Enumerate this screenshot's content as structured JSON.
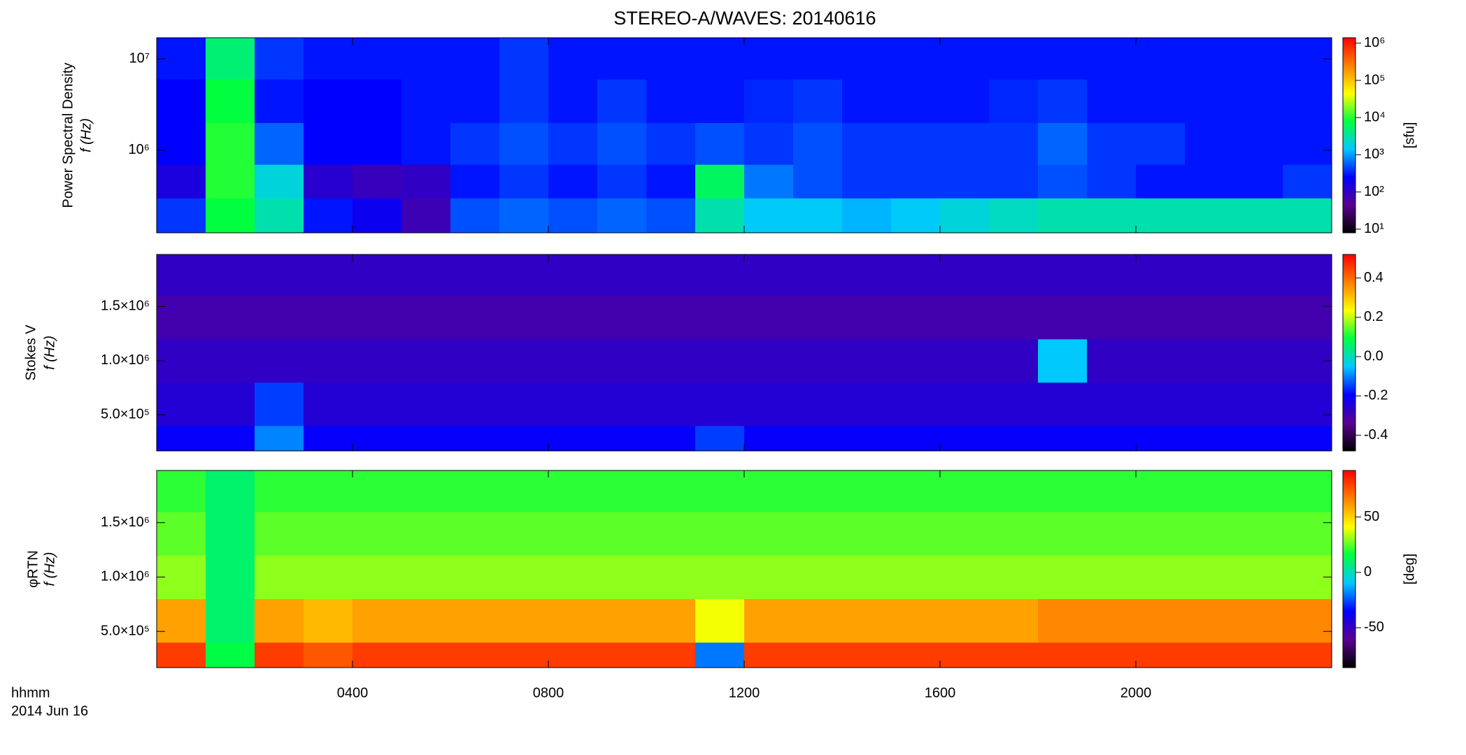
{
  "chart_data": [
    {
      "type": "heatmap",
      "title": "STEREO-A/WAVES: 20140616",
      "ylabels": [
        "Power Spectral Density",
        "f (Hz)"
      ],
      "zlabel": "[sfu]",
      "log_y": true,
      "log_z": true,
      "xlim": [
        0,
        24
      ],
      "xticks": [
        {
          "value": 4,
          "label": "0400"
        },
        {
          "value": 8,
          "label": "0800"
        },
        {
          "value": 12,
          "label": "1200"
        },
        {
          "value": 16,
          "label": "1600"
        },
        {
          "value": 20,
          "label": "2000"
        }
      ],
      "ylim": [
        125000,
        17000000
      ],
      "yticks": [
        {
          "value": 1000000,
          "label": "10⁶"
        },
        {
          "value": 10000000,
          "label": "10⁷"
        }
      ],
      "zlim": [
        8,
        1400000
      ],
      "zticks": [
        {
          "value": 10,
          "label": "10¹"
        },
        {
          "value": 100,
          "label": "10²"
        },
        {
          "value": 1000,
          "label": "10³"
        },
        {
          "value": 10000,
          "label": "10⁴"
        },
        {
          "value": 100000,
          "label": "10⁵"
        },
        {
          "value": 1000000,
          "label": "10⁶"
        }
      ],
      "colormap": [
        "#000000",
        "#5a0090",
        "#0000ff",
        "#00c8ff",
        "#00ff40",
        "#ffff00",
        "#ff8000",
        "#ff0000"
      ],
      "time_bins": [
        0,
        1,
        2,
        3,
        4,
        5,
        6,
        7,
        8,
        9,
        10,
        11,
        12,
        13,
        14,
        15,
        16,
        17,
        18,
        19,
        20,
        21,
        22,
        23,
        24
      ],
      "freq_bins": [
        125000,
        300000,
        700000,
        2000000,
        6000000,
        17000000
      ],
      "z": [
        [
          400,
          8000,
          3000,
          300,
          200,
          80,
          500,
          600,
          500,
          600,
          500,
          3000,
          1500,
          1500,
          1200,
          1500,
          2000,
          2500,
          3000,
          3000,
          3000,
          3000,
          3000,
          3000
        ],
        [
          150,
          10000,
          2000,
          120,
          90,
          100,
          300,
          400,
          300,
          400,
          300,
          6000,
          700,
          500,
          400,
          400,
          400,
          400,
          500,
          400,
          300,
          300,
          300,
          400
        ],
        [
          250,
          10000,
          600,
          250,
          250,
          300,
          400,
          500,
          400,
          500,
          400,
          500,
          400,
          500,
          400,
          400,
          400,
          400,
          600,
          400,
          400,
          300,
          300,
          300
        ],
        [
          250,
          8000,
          300,
          250,
          250,
          300,
          300,
          400,
          300,
          400,
          300,
          300,
          350,
          400,
          300,
          300,
          300,
          350,
          400,
          300,
          300,
          300,
          300,
          300
        ],
        [
          300,
          5000,
          400,
          300,
          300,
          300,
          300,
          400,
          300,
          300,
          300,
          300,
          300,
          300,
          300,
          300,
          300,
          300,
          300,
          300,
          300,
          300,
          300,
          300
        ]
      ]
    },
    {
      "type": "heatmap",
      "ylabels": [
        "Stokes V",
        "f (Hz)"
      ],
      "log_y": false,
      "log_z": false,
      "xlim": [
        0,
        24
      ],
      "xticks": [
        {
          "value": 4,
          "label": "0400"
        },
        {
          "value": 8,
          "label": "0800"
        },
        {
          "value": 12,
          "label": "1200"
        },
        {
          "value": 16,
          "label": "1600"
        },
        {
          "value": 20,
          "label": "2000"
        }
      ],
      "ylim": [
        167000,
        1980000
      ],
      "yticks": [
        {
          "value": 500000,
          "label": "5.0×10⁵"
        },
        {
          "value": 1000000,
          "label": "1.0×10⁶"
        },
        {
          "value": 1500000,
          "label": "1.5×10⁶"
        }
      ],
      "zlim": [
        -0.48,
        0.52
      ],
      "zticks": [
        -0.4,
        -0.2,
        {
          "value": 0,
          "label": "0.0"
        },
        0.2,
        0.4
      ],
      "colormap": [
        "#000000",
        "#5a0090",
        "#0000ff",
        "#00c8ff",
        "#00ff40",
        "#ffff00",
        "#ff8000",
        "#ff0000"
      ],
      "time_bins": [
        0,
        1,
        2,
        3,
        4,
        5,
        6,
        7,
        8,
        9,
        10,
        11,
        12,
        13,
        14,
        15,
        16,
        17,
        18,
        19,
        20,
        21,
        22,
        23,
        24
      ],
      "freq_bins": [
        167000,
        400000,
        800000,
        1200000,
        1600000,
        1980000
      ],
      "z": [
        [
          -0.2,
          -0.2,
          -0.1,
          -0.2,
          -0.2,
          -0.2,
          -0.2,
          -0.2,
          -0.2,
          -0.2,
          -0.2,
          -0.15,
          -0.2,
          -0.2,
          -0.2,
          -0.2,
          -0.2,
          -0.2,
          -0.2,
          -0.2,
          -0.2,
          -0.2,
          -0.2,
          -0.2
        ],
        [
          -0.25,
          -0.25,
          -0.15,
          -0.25,
          -0.25,
          -0.25,
          -0.25,
          -0.25,
          -0.25,
          -0.25,
          -0.25,
          -0.25,
          -0.25,
          -0.25,
          -0.25,
          -0.25,
          -0.25,
          -0.25,
          -0.25,
          -0.25,
          -0.25,
          -0.25,
          -0.25,
          -0.25
        ],
        [
          -0.27,
          -0.27,
          -0.27,
          -0.27,
          -0.27,
          -0.27,
          -0.27,
          -0.27,
          -0.27,
          -0.27,
          -0.27,
          -0.27,
          -0.27,
          -0.27,
          -0.27,
          -0.27,
          -0.27,
          -0.27,
          -0.05,
          -0.27,
          -0.27,
          -0.27,
          -0.27,
          -0.27
        ],
        [
          -0.3,
          -0.3,
          -0.3,
          -0.3,
          -0.3,
          -0.3,
          -0.3,
          -0.3,
          -0.3,
          -0.3,
          -0.3,
          -0.3,
          -0.3,
          -0.3,
          -0.3,
          -0.3,
          -0.3,
          -0.3,
          -0.3,
          -0.3,
          -0.3,
          -0.3,
          -0.3,
          -0.3
        ],
        [
          -0.27,
          -0.27,
          -0.27,
          -0.27,
          -0.27,
          -0.27,
          -0.27,
          -0.27,
          -0.27,
          -0.27,
          -0.27,
          -0.27,
          -0.27,
          -0.27,
          -0.27,
          -0.27,
          -0.27,
          -0.27,
          -0.27,
          -0.27,
          -0.27,
          -0.27,
          -0.27,
          -0.27
        ]
      ]
    },
    {
      "type": "heatmap",
      "ylabels": [
        "φRTN",
        "f (Hz)"
      ],
      "zlabel": "[deg]",
      "xlabel_lines": [
        "hhmm",
        "2014 Jun 16"
      ],
      "log_y": false,
      "log_z": false,
      "xlim": [
        0,
        24
      ],
      "xticks": [
        {
          "value": 4,
          "label": "0400"
        },
        {
          "value": 8,
          "label": "0800"
        },
        {
          "value": 12,
          "label": "1200"
        },
        {
          "value": 16,
          "label": "1600"
        },
        {
          "value": 20,
          "label": "2000"
        }
      ],
      "ylim": [
        167000,
        1980000
      ],
      "yticks": [
        {
          "value": 500000,
          "label": "5.0×10⁵"
        },
        {
          "value": 1000000,
          "label": "1.0×10⁶"
        },
        {
          "value": 1500000,
          "label": "1.5×10⁶"
        }
      ],
      "zlim": [
        -86,
        92
      ],
      "zticks": [
        -50,
        0,
        50
      ],
      "colormap": [
        "#000000",
        "#5a0090",
        "#0000ff",
        "#00c8ff",
        "#00ff40",
        "#ffff00",
        "#ff8000",
        "#ff0000"
      ],
      "time_bins": [
        0,
        1,
        2,
        3,
        4,
        5,
        6,
        7,
        8,
        9,
        10,
        11,
        12,
        13,
        14,
        15,
        16,
        17,
        18,
        19,
        20,
        21,
        22,
        23,
        24
      ],
      "freq_bins": [
        167000,
        400000,
        800000,
        1200000,
        1600000,
        1980000
      ],
      "z": [
        [
          80,
          15,
          80,
          75,
          80,
          80,
          80,
          80,
          80,
          80,
          80,
          -20,
          80,
          80,
          80,
          80,
          80,
          80,
          80,
          80,
          80,
          80,
          80,
          80
        ],
        [
          60,
          10,
          60,
          55,
          60,
          60,
          60,
          60,
          60,
          60,
          60,
          40,
          60,
          60,
          60,
          60,
          60,
          60,
          65,
          65,
          65,
          65,
          65,
          65
        ],
        [
          30,
          10,
          30,
          30,
          30,
          30,
          30,
          30,
          30,
          30,
          30,
          30,
          30,
          30,
          30,
          30,
          30,
          30,
          30,
          30,
          30,
          30,
          30,
          30
        ],
        [
          25,
          10,
          25,
          25,
          25,
          25,
          25,
          25,
          25,
          25,
          25,
          25,
          25,
          25,
          25,
          25,
          25,
          25,
          25,
          25,
          25,
          25,
          25,
          25
        ],
        [
          20,
          10,
          20,
          20,
          20,
          20,
          20,
          20,
          20,
          20,
          20,
          20,
          20,
          20,
          20,
          20,
          20,
          20,
          20,
          20,
          20,
          20,
          20,
          20
        ]
      ]
    }
  ]
}
